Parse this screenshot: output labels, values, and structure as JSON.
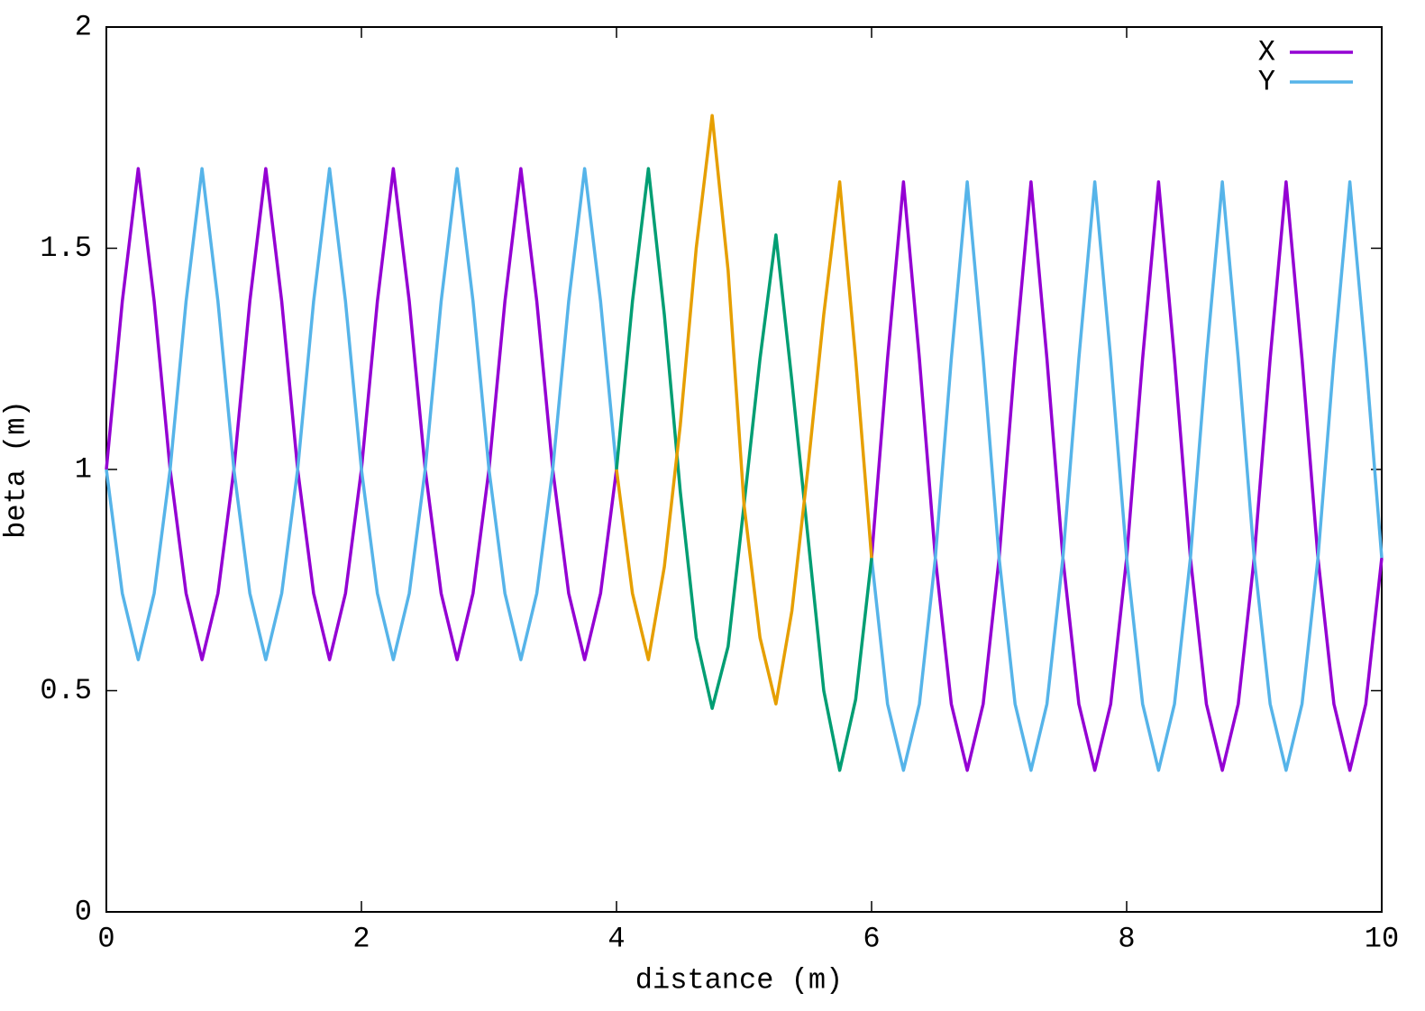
{
  "chart_data": {
    "type": "line",
    "xlabel": "distance (m)",
    "ylabel": "beta (m)",
    "xlim": [
      0,
      10
    ],
    "xticks": [
      0,
      2,
      4,
      6,
      8,
      10
    ],
    "ylim": [
      0,
      2
    ],
    "yticks": [
      0,
      0.5,
      1,
      1.5,
      2
    ],
    "grid": false,
    "legend": "top-right",
    "x": [
      0,
      0.125,
      0.25,
      0.375,
      0.5,
      0.625,
      0.75,
      0.875,
      1,
      1.125,
      1.25,
      1.375,
      1.5,
      1.625,
      1.75,
      1.875,
      2,
      2.125,
      2.25,
      2.375,
      2.5,
      2.625,
      2.75,
      2.875,
      3,
      3.125,
      3.25,
      3.375,
      3.5,
      3.625,
      3.75,
      3.875,
      4,
      4.125,
      4.25,
      4.375,
      4.5,
      4.625,
      4.75,
      4.875,
      5,
      5.125,
      5.25,
      5.375,
      5.5,
      5.625,
      5.75,
      5.875,
      6,
      6.125,
      6.25,
      6.375,
      6.5,
      6.625,
      6.75,
      6.875,
      7,
      7.125,
      7.25,
      7.375,
      7.5,
      7.625,
      7.75,
      7.875,
      8,
      8.125,
      8.25,
      8.375,
      8.5,
      8.625,
      8.75,
      8.875,
      9,
      9.125,
      9.25,
      9.375,
      9.5,
      9.625,
      9.75,
      9.875,
      10
    ],
    "series": [
      {
        "name": "X",
        "color": "#9400d3",
        "values": [
          1.0,
          1.38,
          1.68,
          1.38,
          1.0,
          0.72,
          0.57,
          0.72,
          1.0,
          1.38,
          1.68,
          1.38,
          1.0,
          0.72,
          0.57,
          0.72,
          1.0,
          1.38,
          1.68,
          1.38,
          1.0,
          0.72,
          0.57,
          0.72,
          1.0,
          1.38,
          1.68,
          1.38,
          1.0,
          0.72,
          0.57,
          0.72,
          1.0,
          null,
          null,
          null,
          null,
          null,
          null,
          null,
          null,
          null,
          null,
          null,
          null,
          null,
          null,
          null,
          0.8,
          1.25,
          1.65,
          1.25,
          0.8,
          0.47,
          0.32,
          0.47,
          0.8,
          1.25,
          1.65,
          1.25,
          0.8,
          0.47,
          0.32,
          0.47,
          0.8,
          1.25,
          1.65,
          1.25,
          0.8,
          0.47,
          0.32,
          0.47,
          0.8,
          1.25,
          1.65,
          1.25,
          0.8,
          0.47,
          0.32,
          0.47,
          0.8
        ]
      },
      {
        "name": "Y",
        "color": "#56b4e9",
        "values": [
          1.0,
          0.72,
          0.57,
          0.72,
          1.0,
          1.38,
          1.68,
          1.38,
          1.0,
          0.72,
          0.57,
          0.72,
          1.0,
          1.38,
          1.68,
          1.38,
          1.0,
          0.72,
          0.57,
          0.72,
          1.0,
          1.38,
          1.68,
          1.38,
          1.0,
          0.72,
          0.57,
          0.72,
          1.0,
          1.38,
          1.68,
          1.38,
          1.0,
          null,
          null,
          null,
          null,
          null,
          null,
          null,
          null,
          null,
          null,
          null,
          null,
          null,
          null,
          null,
          0.8,
          0.47,
          0.32,
          0.47,
          0.8,
          1.25,
          1.65,
          1.25,
          0.8,
          0.47,
          0.32,
          0.47,
          0.8,
          1.25,
          1.65,
          1.25,
          0.8,
          0.47,
          0.32,
          0.47,
          0.8,
          1.25,
          1.65,
          1.25,
          0.8,
          0.47,
          0.32,
          0.47,
          0.8,
          1.25,
          1.65,
          1.25,
          0.8
        ]
      },
      {
        "color": "#009e73",
        "values": [
          null,
          null,
          null,
          null,
          null,
          null,
          null,
          null,
          null,
          null,
          null,
          null,
          null,
          null,
          null,
          null,
          null,
          null,
          null,
          null,
          null,
          null,
          null,
          null,
          null,
          null,
          null,
          null,
          null,
          null,
          null,
          null,
          1.0,
          1.38,
          1.68,
          1.35,
          0.95,
          0.62,
          0.46,
          0.6,
          0.92,
          1.25,
          1.53,
          1.2,
          0.85,
          0.5,
          0.32,
          0.48,
          0.8,
          null,
          null,
          null,
          null,
          null,
          null,
          null,
          null,
          null,
          null,
          null,
          null,
          null,
          null,
          null,
          null,
          null,
          null,
          null,
          null,
          null,
          null,
          null,
          null,
          null,
          null,
          null,
          null,
          null,
          null,
          null,
          null
        ]
      },
      {
        "color": "#e69f00",
        "values": [
          null,
          null,
          null,
          null,
          null,
          null,
          null,
          null,
          null,
          null,
          null,
          null,
          null,
          null,
          null,
          null,
          null,
          null,
          null,
          null,
          null,
          null,
          null,
          null,
          null,
          null,
          null,
          null,
          null,
          null,
          null,
          null,
          1.0,
          0.72,
          0.57,
          0.78,
          1.1,
          1.5,
          1.8,
          1.45,
          0.92,
          0.62,
          0.47,
          0.68,
          1.0,
          1.35,
          1.65,
          1.25,
          0.8,
          null,
          null,
          null,
          null,
          null,
          null,
          null,
          null,
          null,
          null,
          null,
          null,
          null,
          null,
          null,
          null,
          null,
          null,
          null,
          null,
          null,
          null,
          null,
          null,
          null,
          null,
          null,
          null,
          null,
          null,
          null,
          null
        ]
      }
    ]
  }
}
